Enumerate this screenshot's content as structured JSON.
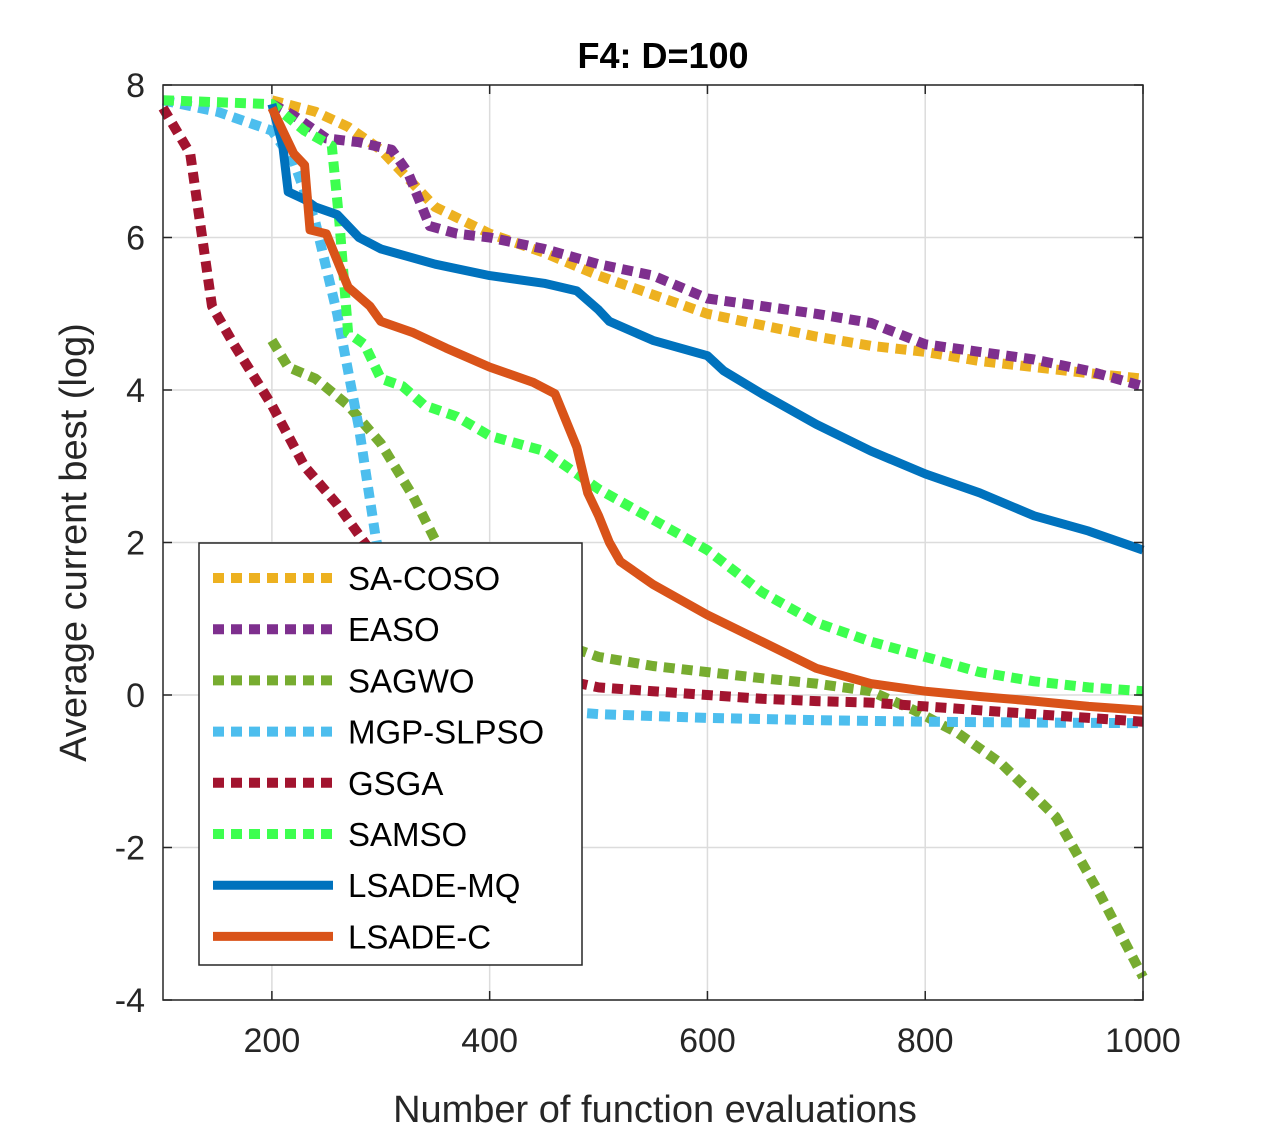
{
  "chart_data": {
    "type": "line",
    "title": "F4: D=100",
    "xlabel": "Number of function evaluations",
    "ylabel": "Average current best (log)",
    "xlim": [
      100,
      1000
    ],
    "ylim": [
      -4,
      8
    ],
    "xticks": [
      200,
      400,
      600,
      800,
      1000
    ],
    "yticks": [
      -4,
      -2,
      0,
      2,
      4,
      6,
      8
    ],
    "xtick_labels": [
      "200",
      "400",
      "600",
      "800",
      "1000"
    ],
    "ytick_labels": [
      "-4",
      "-2",
      "0",
      "2",
      "4",
      "6",
      "8"
    ],
    "grid": true,
    "legend_position": "bottom-left",
    "series": [
      {
        "name": "SA-COSO",
        "color": "#EDB120",
        "style": "dotted",
        "points": [
          [
            200,
            7.8
          ],
          [
            240,
            7.65
          ],
          [
            270,
            7.45
          ],
          [
            300,
            7.15
          ],
          [
            330,
            6.7
          ],
          [
            350,
            6.4
          ],
          [
            400,
            6.05
          ],
          [
            450,
            5.8
          ],
          [
            500,
            5.5
          ],
          [
            550,
            5.25
          ],
          [
            600,
            5.0
          ],
          [
            650,
            4.85
          ],
          [
            700,
            4.7
          ],
          [
            750,
            4.58
          ],
          [
            800,
            4.5
          ],
          [
            850,
            4.38
          ],
          [
            900,
            4.3
          ],
          [
            950,
            4.22
          ],
          [
            1000,
            4.15
          ]
        ]
      },
      {
        "name": "EASO",
        "color": "#7E2F8E",
        "style": "dotted",
        "points": [
          [
            200,
            7.75
          ],
          [
            220,
            7.6
          ],
          [
            250,
            7.3
          ],
          [
            280,
            7.25
          ],
          [
            310,
            7.15
          ],
          [
            325,
            6.85
          ],
          [
            345,
            6.15
          ],
          [
            370,
            6.05
          ],
          [
            400,
            6.0
          ],
          [
            450,
            5.85
          ],
          [
            500,
            5.65
          ],
          [
            550,
            5.5
          ],
          [
            600,
            5.2
          ],
          [
            650,
            5.1
          ],
          [
            700,
            5.0
          ],
          [
            750,
            4.88
          ],
          [
            800,
            4.6
          ],
          [
            850,
            4.5
          ],
          [
            900,
            4.4
          ],
          [
            950,
            4.25
          ],
          [
            1000,
            4.05
          ]
        ]
      },
      {
        "name": "SAGWO",
        "color": "#77AC30",
        "style": "dotted",
        "points": [
          [
            200,
            4.65
          ],
          [
            215,
            4.3
          ],
          [
            240,
            4.15
          ],
          [
            270,
            3.8
          ],
          [
            300,
            3.3
          ],
          [
            330,
            2.6
          ],
          [
            360,
            1.75
          ],
          [
            400,
            1.05
          ],
          [
            450,
            0.75
          ],
          [
            500,
            0.5
          ],
          [
            550,
            0.38
          ],
          [
            600,
            0.3
          ],
          [
            650,
            0.22
          ],
          [
            700,
            0.15
          ],
          [
            750,
            0.05
          ],
          [
            790,
            -0.2
          ],
          [
            830,
            -0.5
          ],
          [
            870,
            -0.9
          ],
          [
            920,
            -1.6
          ],
          [
            960,
            -2.6
          ],
          [
            1000,
            -3.7
          ]
        ]
      },
      {
        "name": "MGP-SLPSO",
        "color": "#4DBEEE",
        "style": "dotted",
        "points": [
          [
            100,
            7.8
          ],
          [
            150,
            7.65
          ],
          [
            200,
            7.4
          ],
          [
            220,
            7.0
          ],
          [
            240,
            6.2
          ],
          [
            260,
            5.0
          ],
          [
            280,
            3.5
          ],
          [
            295,
            2.1
          ],
          [
            310,
            1.0
          ],
          [
            330,
            0.2
          ],
          [
            360,
            -0.05
          ],
          [
            400,
            -0.15
          ],
          [
            500,
            -0.25
          ],
          [
            600,
            -0.3
          ],
          [
            700,
            -0.33
          ],
          [
            800,
            -0.35
          ],
          [
            900,
            -0.36
          ],
          [
            1000,
            -0.37
          ]
        ]
      },
      {
        "name": "GSGA",
        "color": "#A2142F",
        "style": "dotted",
        "points": [
          [
            100,
            7.7
          ],
          [
            125,
            7.1
          ],
          [
            145,
            5.1
          ],
          [
            165,
            4.6
          ],
          [
            200,
            3.8
          ],
          [
            230,
            3.0
          ],
          [
            260,
            2.5
          ],
          [
            290,
            1.9
          ],
          [
            320,
            1.3
          ],
          [
            360,
            0.7
          ],
          [
            400,
            0.4
          ],
          [
            450,
            0.25
          ],
          [
            500,
            0.1
          ],
          [
            550,
            0.05
          ],
          [
            600,
            0.0
          ],
          [
            650,
            -0.05
          ],
          [
            700,
            -0.08
          ],
          [
            750,
            -0.1
          ],
          [
            800,
            -0.15
          ],
          [
            850,
            -0.2
          ],
          [
            900,
            -0.25
          ],
          [
            950,
            -0.3
          ],
          [
            1000,
            -0.35
          ]
        ]
      },
      {
        "name": "SAMSO",
        "color": "#3DFF4F",
        "style": "dotted",
        "points": [
          [
            100,
            7.8
          ],
          [
            200,
            7.75
          ],
          [
            230,
            7.4
          ],
          [
            255,
            7.2
          ],
          [
            262,
            6.2
          ],
          [
            270,
            4.75
          ],
          [
            285,
            4.6
          ],
          [
            300,
            4.15
          ],
          [
            320,
            4.05
          ],
          [
            340,
            3.8
          ],
          [
            370,
            3.65
          ],
          [
            400,
            3.4
          ],
          [
            450,
            3.2
          ],
          [
            500,
            2.7
          ],
          [
            550,
            2.3
          ],
          [
            600,
            1.9
          ],
          [
            650,
            1.35
          ],
          [
            700,
            0.95
          ],
          [
            750,
            0.7
          ],
          [
            800,
            0.5
          ],
          [
            850,
            0.3
          ],
          [
            900,
            0.18
          ],
          [
            950,
            0.1
          ],
          [
            1000,
            0.05
          ]
        ]
      },
      {
        "name": "LSADE-MQ",
        "color": "#0072BD",
        "style": "solid",
        "points": [
          [
            200,
            7.75
          ],
          [
            210,
            7.2
          ],
          [
            215,
            6.6
          ],
          [
            230,
            6.5
          ],
          [
            240,
            6.4
          ],
          [
            260,
            6.3
          ],
          [
            280,
            6.0
          ],
          [
            300,
            5.85
          ],
          [
            350,
            5.65
          ],
          [
            400,
            5.5
          ],
          [
            450,
            5.4
          ],
          [
            480,
            5.3
          ],
          [
            500,
            5.05
          ],
          [
            510,
            4.9
          ],
          [
            550,
            4.65
          ],
          [
            600,
            4.45
          ],
          [
            615,
            4.25
          ],
          [
            650,
            3.95
          ],
          [
            700,
            3.55
          ],
          [
            750,
            3.2
          ],
          [
            800,
            2.9
          ],
          [
            850,
            2.65
          ],
          [
            900,
            2.35
          ],
          [
            950,
            2.15
          ],
          [
            1000,
            1.9
          ]
        ]
      },
      {
        "name": "LSADE-C",
        "color": "#D95319",
        "style": "solid",
        "points": [
          [
            200,
            7.7
          ],
          [
            220,
            7.1
          ],
          [
            230,
            6.95
          ],
          [
            235,
            6.1
          ],
          [
            250,
            6.05
          ],
          [
            260,
            5.7
          ],
          [
            270,
            5.35
          ],
          [
            290,
            5.1
          ],
          [
            300,
            4.9
          ],
          [
            330,
            4.75
          ],
          [
            360,
            4.55
          ],
          [
            400,
            4.3
          ],
          [
            440,
            4.1
          ],
          [
            460,
            3.95
          ],
          [
            470,
            3.6
          ],
          [
            480,
            3.25
          ],
          [
            490,
            2.65
          ],
          [
            500,
            2.35
          ],
          [
            510,
            2.0
          ],
          [
            520,
            1.75
          ],
          [
            550,
            1.45
          ],
          [
            600,
            1.05
          ],
          [
            650,
            0.7
          ],
          [
            700,
            0.35
          ],
          [
            750,
            0.15
          ],
          [
            800,
            0.05
          ],
          [
            850,
            -0.02
          ],
          [
            900,
            -0.08
          ],
          [
            950,
            -0.15
          ],
          [
            1000,
            -0.2
          ]
        ]
      }
    ]
  }
}
